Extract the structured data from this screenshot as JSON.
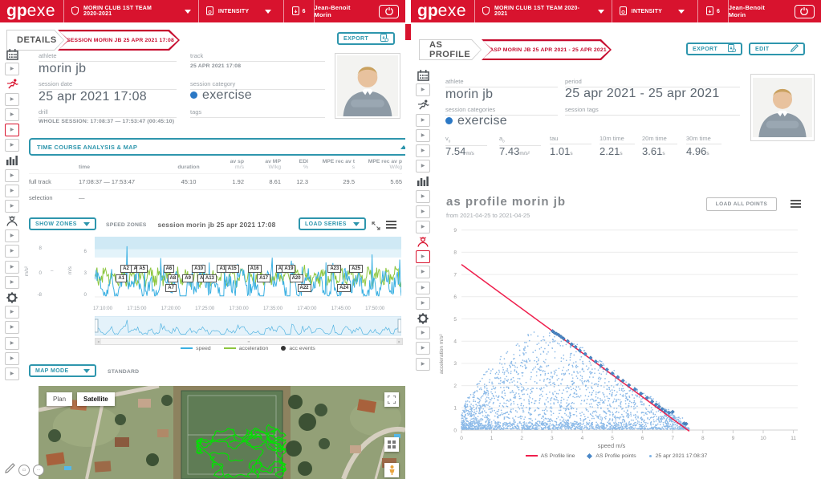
{
  "colors": {
    "brand_red": "#d8132e",
    "accent_teal": "#2e96ad",
    "speed_blue": "#3ab0e2",
    "accel_green": "#8dc63f",
    "scatter_blue": "#7fb3e6",
    "profile_blue": "#4a87c7",
    "line_red": "#ef1f4d",
    "category_blue": "#2b78c5"
  },
  "header": {
    "logo_gp": "gp",
    "logo_exe": "exe",
    "team": "MORIN CLUB 1ST TEAM 2020-2021",
    "metric": "INTENSITY",
    "badge_count": "6",
    "user": "Jean-Benoit Morin"
  },
  "sidebars": {
    "left": [
      "calendar",
      "play",
      "runner-red",
      "play",
      "play",
      "play-active",
      "play",
      "barchart",
      "play",
      "play",
      "play",
      "coach",
      "play",
      "play",
      "play",
      "play",
      "gear",
      "play",
      "play",
      "play",
      "play",
      "play"
    ],
    "right": [
      "calendar",
      "play",
      "runner",
      "play",
      "play",
      "play",
      "play",
      "barchart",
      "play",
      "play",
      "play",
      "coach-red",
      "play-active",
      "play",
      "play",
      "play",
      "gear",
      "play",
      "play",
      "play"
    ]
  },
  "left": {
    "page_title": "DETAILS",
    "breadcrumb": "SESSION MORIN JB 25 APR 2021 17:08",
    "export_label": "EXPORT",
    "info": {
      "athlete_label": "athlete",
      "athlete": "morin jb",
      "track_label": "track",
      "track": "25 APR 2021 17:08",
      "session_date_label": "session date",
      "session_date": "25 apr 2021 17:08",
      "session_category_label": "session category",
      "session_category": "exercise",
      "drill_label": "drill",
      "drill": "WHOLE SESSION: 17:08:37 — 17:53:47 (00:45:10)",
      "tags_label": "tags"
    },
    "panel_title": "TIME COURSE ANALYSIS & MAP",
    "table": {
      "headers": [
        [
          "",
          ""
        ],
        [
          "time",
          ""
        ],
        [
          "duration",
          ""
        ],
        [
          "av sp",
          "m/s"
        ],
        [
          "av MP",
          "W/kg"
        ],
        [
          "EDI",
          "%"
        ],
        [
          "MPE rec av t",
          "s"
        ],
        [
          "MPE rec av p",
          "W/kg"
        ]
      ],
      "rows": [
        {
          "name": "full track",
          "cells": [
            "17:08:37 — 17:53:47",
            "45:10",
            "1.92",
            "8.61",
            "12.3",
            "29.5",
            "5.65"
          ]
        },
        {
          "name": "selection",
          "cells": [
            "—",
            "",
            "",
            "",
            "",
            ""
          ]
        }
      ]
    },
    "chart_controls": {
      "show_zones": "SHOW ZONES",
      "zones_label": "SPEED ZONES",
      "title": "session morin jb 25 apr 2021 17:08",
      "load_series": "LOAD SERIES"
    },
    "legend": [
      "speed",
      "acceleration",
      "acc events"
    ],
    "map_mode_label": "MAP MODE",
    "map_mode_value": "STANDARD",
    "map": {
      "plan": "Plan",
      "satellite": "Satellite",
      "track": {
        "seed": 5,
        "steps": 520
      }
    }
  },
  "right": {
    "page_title": "AS PROFILE",
    "breadcrumb": "ASP MORIN JB 25 APR 2021 - 25 APR 2021",
    "export_label": "EXPORT",
    "edit_label": "EDIT",
    "info": {
      "athlete_label": "athlete",
      "athlete": "morin jb",
      "period_label": "period",
      "period": "25 apr 2021 - 25 apr 2021",
      "session_categories_label": "session categories",
      "session_category": "exercise",
      "session_tags_label": "session tags",
      "metrics": [
        {
          "main": "v",
          "sub": "0",
          "value": "7.54",
          "unit": "m/s"
        },
        {
          "main": "a",
          "sub": "0",
          "value": "7.43",
          "unit": "m/s²"
        },
        {
          "main": "tau",
          "sub": "",
          "value": "1.01",
          "unit": "s"
        },
        {
          "main": "10m time",
          "sub": "",
          "value": "2.21",
          "unit": "s"
        },
        {
          "main": "20m time",
          "sub": "",
          "value": "3.61",
          "unit": "s"
        },
        {
          "main": "30m time",
          "sub": "",
          "value": "4.96",
          "unit": "s"
        }
      ]
    },
    "chart_title": "as profile morin jb",
    "chart_subtitle": "from 2021-04-25 to 2021-04-25",
    "load_all_points": "LOAD ALL POINTS",
    "legend": [
      "AS Profile line",
      "AS Profile points",
      "25 apr 2021 17:08:37"
    ]
  },
  "chart_data": [
    {
      "type": "line",
      "title": "session morin jb 25 apr 2021 17:08",
      "x_axis": {
        "ticks": [
          "17:10:00",
          "17:15:00",
          "17:20:00",
          "17:25:00",
          "17:30:00",
          "17:35:00",
          "17:40:00",
          "17:45:00",
          "17:50:00"
        ],
        "range": [
          "17:08:37",
          "17:53:47"
        ]
      },
      "y_axis_left": {
        "label": "m/s²",
        "ticks": [
          8,
          0,
          -8
        ]
      },
      "y_axis_right": {
        "label": "m/s",
        "ticks": [
          6,
          3,
          0
        ]
      },
      "series": [
        {
          "name": "speed",
          "color": "#3ab0e2"
        },
        {
          "name": "acceleration",
          "color": "#8dc63f"
        },
        {
          "name": "acc events",
          "color": "#333333"
        }
      ],
      "zones": [
        {
          "from": 6.7,
          "to": 9.5,
          "color": "#cfe9f5"
        },
        {
          "from": 5.55,
          "to": 6.7,
          "color": "#e3f3fa"
        }
      ],
      "annotations": [
        [
          "A1",
          0.09,
          1
        ],
        [
          "A2",
          0.105,
          0
        ],
        [
          "A4",
          0.14,
          0
        ],
        [
          "A5",
          0.158,
          0
        ],
        [
          "A6",
          0.245,
          0
        ],
        [
          "A8",
          0.258,
          1
        ],
        [
          "A7",
          0.252,
          2
        ],
        [
          "A9",
          0.307,
          1
        ],
        [
          "A10",
          0.338,
          0
        ],
        [
          "A11",
          0.356,
          1
        ],
        [
          "A13",
          0.374,
          1
        ],
        [
          "A14",
          0.42,
          0
        ],
        [
          "A15",
          0.447,
          0
        ],
        [
          "A16",
          0.52,
          0
        ],
        [
          "A17",
          0.55,
          1
        ],
        [
          "A18",
          0.612,
          0
        ],
        [
          "A19",
          0.632,
          0
        ],
        [
          "A20",
          0.656,
          1
        ],
        [
          "A22",
          0.682,
          2
        ],
        [
          "A23",
          0.781,
          0
        ],
        [
          "A24",
          0.812,
          2
        ],
        [
          "A25",
          0.851,
          0
        ]
      ],
      "gen": {
        "seed": 11,
        "points": 400
      }
    },
    {
      "type": "scatter",
      "title": "as profile morin jb",
      "subtitle": "from 2021-04-25 to 2021-04-25",
      "xlabel": "speed m/s",
      "ylabel": "acceleration m/s²",
      "xlim": [
        0,
        11
      ],
      "ylim": [
        0,
        9
      ],
      "x_ticks": [
        0,
        1,
        2,
        3,
        4,
        5,
        6,
        7,
        8,
        9,
        10,
        11
      ],
      "y_ticks": [
        0,
        1,
        2,
        3,
        4,
        5,
        6,
        7,
        8,
        9
      ],
      "as_profile_line": {
        "v0": 7.54,
        "a0": 7.43
      },
      "as_profile_points": [
        [
          3.02,
          4.45
        ],
        [
          3.08,
          4.38
        ],
        [
          3.15,
          4.33
        ],
        [
          3.22,
          4.28
        ],
        [
          3.3,
          4.2
        ],
        [
          3.38,
          4.12
        ],
        [
          3.52,
          4.0
        ],
        [
          3.65,
          3.86
        ],
        [
          3.78,
          3.74
        ],
        [
          3.92,
          3.58
        ],
        [
          4.1,
          3.42
        ],
        [
          4.28,
          3.25
        ],
        [
          4.45,
          3.08
        ],
        [
          4.62,
          2.9
        ],
        [
          4.82,
          2.72
        ],
        [
          5.0,
          2.55
        ],
        [
          5.18,
          2.38
        ],
        [
          5.35,
          2.22
        ],
        [
          5.55,
          2.02
        ],
        [
          5.75,
          1.83
        ],
        [
          5.95,
          1.64
        ],
        [
          6.15,
          1.45
        ],
        [
          6.32,
          1.28
        ],
        [
          6.45,
          1.15
        ],
        [
          6.55,
          1.05
        ],
        [
          6.65,
          0.95
        ],
        [
          6.75,
          0.85
        ],
        [
          6.88,
          0.78
        ],
        [
          7.0,
          0.82
        ],
        [
          7.38,
          0.3
        ],
        [
          7.45,
          0.28
        ]
      ],
      "cloud": {
        "count": 2200,
        "seed": 7,
        "x_max": 7.55,
        "peak_x": 2.3,
        "peak_y": 4.45,
        "bottom_extra": 420,
        "hook_center": [
          6.95,
          0.5
        ],
        "hook_count": 60
      }
    }
  ]
}
